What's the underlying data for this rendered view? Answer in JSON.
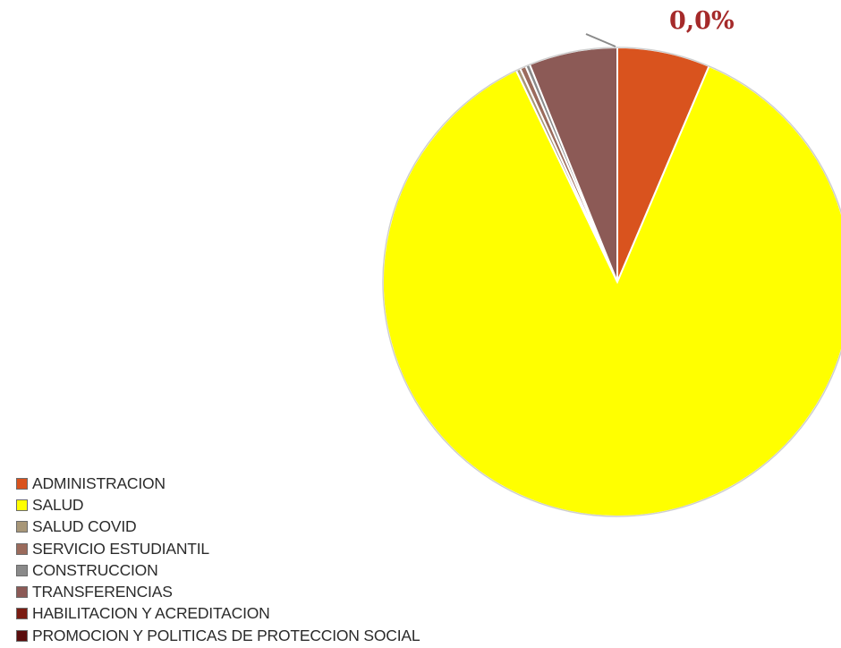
{
  "chart_data": {
    "type": "pie",
    "categories": [
      "ADMINISTRACION",
      "SALUD",
      "SALUD COVID",
      "SERVICIO ESTUDIANTIL",
      "CONSTRUCCION",
      "TRANSFERENCIAS",
      "HABILITACION Y ACREDITACION",
      "PROMOCION Y POLITICAS DE PROTECCION SOCIAL"
    ],
    "values": [
      6.4,
      86.5,
      0.3,
      0.4,
      0.3,
      6.1,
      0.0,
      0.0
    ],
    "colors": [
      "#d9531e",
      "#ffff00",
      "#a89778",
      "#9b6b5c",
      "#8a8a8a",
      "#8c5a56",
      "#7a1c12",
      "#5a0d0d"
    ],
    "annotation": "0,0%",
    "annotation_color": "#a52a2a",
    "legend_position": "bottom-left"
  }
}
